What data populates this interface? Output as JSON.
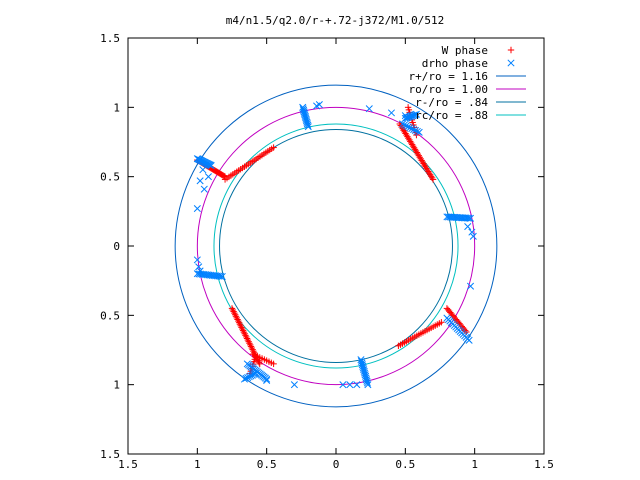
{
  "chart_data": {
    "type": "scatter",
    "title": "m4/n1.5/q2.0/r-+.72-j372/M1.0/512",
    "xlim": [
      -1.5,
      1.5
    ],
    "ylim": [
      -1.5,
      1.5
    ],
    "x_tick_values": [
      -1.5,
      -1,
      -0.5,
      0,
      0.5,
      1,
      1.5
    ],
    "y_tick_values": [
      -1.5,
      -1,
      -0.5,
      0,
      0.5,
      1,
      1.5
    ],
    "x_tick_labels": [
      "1.5",
      "1",
      "0.5",
      "0",
      "0.5",
      "1",
      "1.5"
    ],
    "y_tick_labels": [
      "1.5",
      "1",
      "0.5",
      "0",
      "0.5",
      "1",
      "1.5"
    ],
    "legend_position": "top-right",
    "series": [
      {
        "name": "W phase",
        "marker": "plus",
        "color": "#ff0000",
        "segments": [
          {
            "from": [
              -1.0,
              0.62
            ],
            "to": [
              -0.8,
              0.5
            ],
            "n": 32
          },
          {
            "from": [
              -0.8,
              0.48
            ],
            "to": [
              -0.45,
              0.71
            ],
            "n": 26
          },
          {
            "from": [
              0.46,
              0.88
            ],
            "to": [
              0.7,
              0.48
            ],
            "n": 36
          },
          {
            "from": [
              0.52,
              1.0
            ],
            "to": [
              0.58,
              0.8
            ],
            "n": 12
          },
          {
            "from": [
              0.8,
              -0.45
            ],
            "to": [
              0.94,
              -0.62
            ],
            "n": 18
          },
          {
            "from": [
              0.45,
              -0.72
            ],
            "to": [
              0.76,
              -0.55
            ],
            "n": 22
          },
          {
            "from": [
              -0.75,
              -0.45
            ],
            "to": [
              -0.55,
              -0.85
            ],
            "n": 36
          },
          {
            "from": [
              -0.6,
              -0.78
            ],
            "to": [
              -0.45,
              -0.85
            ],
            "n": 10
          },
          {
            "from": [
              -0.58,
              -0.8
            ],
            "to": [
              -0.62,
              -0.92
            ],
            "n": 8
          }
        ]
      },
      {
        "name": "drho phase",
        "marker": "cross",
        "color": "#0080ff",
        "segments": [
          {
            "from": [
              -1.0,
              0.63
            ],
            "to": [
              -0.9,
              0.58
            ],
            "n": 16
          },
          {
            "from": [
              -1.0,
              -0.2
            ],
            "to": [
              -0.82,
              -0.22
            ],
            "n": 16
          },
          {
            "from": [
              -0.24,
              1.0
            ],
            "to": [
              -0.2,
              0.86
            ],
            "n": 14
          },
          {
            "from": [
              0.5,
              0.92
            ],
            "to": [
              0.58,
              0.95
            ],
            "n": 10
          },
          {
            "from": [
              0.48,
              0.88
            ],
            "to": [
              0.6,
              0.82
            ],
            "n": 10
          },
          {
            "from": [
              0.8,
              0.21
            ],
            "to": [
              0.97,
              0.2
            ],
            "n": 16
          },
          {
            "from": [
              0.8,
              -0.52
            ],
            "to": [
              0.96,
              -0.68
            ],
            "n": 16
          },
          {
            "from": [
              0.18,
              -0.82
            ],
            "to": [
              0.23,
              -1.0
            ],
            "n": 16
          },
          {
            "from": [
              -0.64,
              -0.85
            ],
            "to": [
              -0.5,
              -0.96
            ],
            "n": 16
          },
          {
            "from": [
              -0.66,
              -0.96
            ],
            "to": [
              -0.58,
              -0.92
            ],
            "n": 8
          }
        ],
        "points": [
          [
            0.95,
            0.14
          ],
          [
            0.99,
            0.07
          ],
          [
            0.98,
            0.1
          ],
          [
            0.97,
            -0.29
          ],
          [
            -1.0,
            0.27
          ],
          [
            -0.95,
            0.41
          ],
          [
            -0.98,
            0.47
          ],
          [
            -0.92,
            0.5
          ],
          [
            -0.96,
            0.55
          ],
          [
            -1.0,
            -0.1
          ],
          [
            -0.99,
            -0.15
          ],
          [
            -0.98,
            -0.18
          ],
          [
            -0.12,
            1.02
          ],
          [
            -0.14,
            1.01
          ],
          [
            0.24,
            0.99
          ],
          [
            0.4,
            0.96
          ],
          [
            0.5,
            0.94
          ],
          [
            -0.5,
            -0.97
          ],
          [
            -0.3,
            -1.0
          ],
          [
            0.05,
            -1.0
          ],
          [
            0.1,
            -1.0
          ],
          [
            0.15,
            -1.0
          ]
        ]
      }
    ],
    "circles": [
      {
        "name": "r+/ro = 1.16",
        "radius": 1.16,
        "color": "#0060c0"
      },
      {
        "name": "ro/ro = 1.00",
        "radius": 1.0,
        "color": "#c000c0"
      },
      {
        "name": "r-/ro = .84",
        "radius": 0.84,
        "color": "#0070a0"
      },
      {
        "name": "rc/ro = .88",
        "radius": 0.88,
        "color": "#00c0c0"
      }
    ]
  }
}
